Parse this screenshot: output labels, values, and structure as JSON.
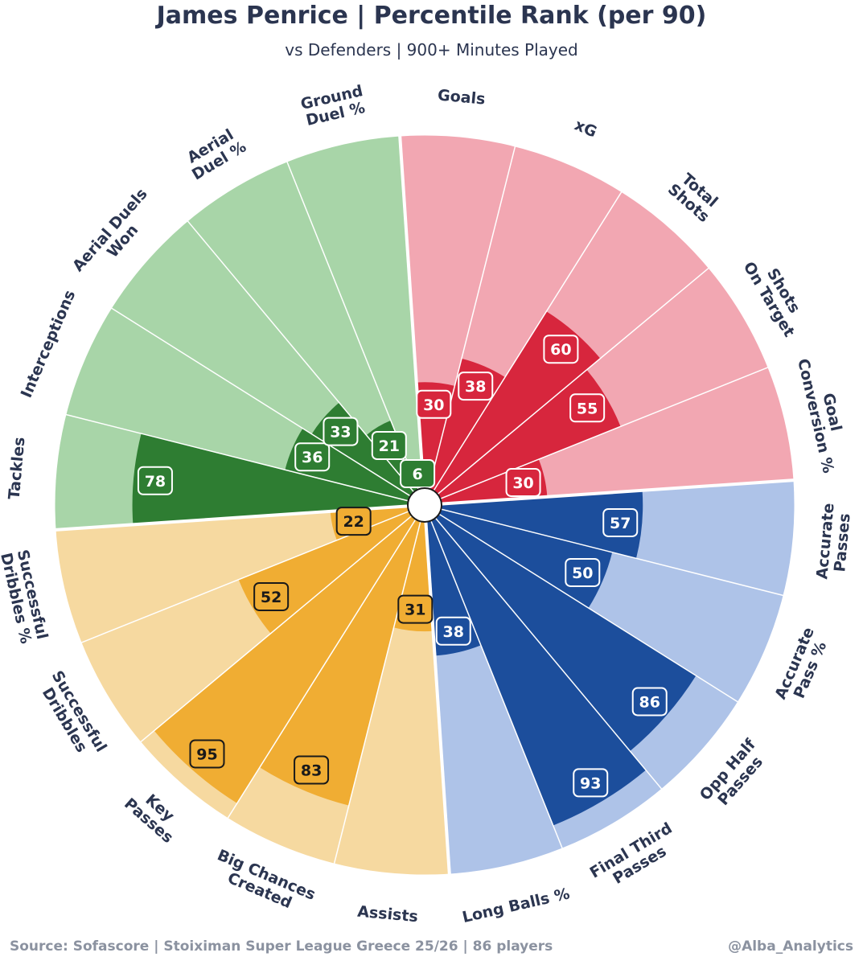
{
  "header": {
    "title": "James Penrice | Percentile Rank (per 90)",
    "subtitle": "vs Defenders | 900+ Minutes Played"
  },
  "footer": {
    "source": "Source: Sofascore | Stoiximan Super League Greece 25/26 | 86 players",
    "handle": "@Alba_Analytics"
  },
  "colors": {
    "attack": {
      "fill": "#d7263d",
      "light": "#f2a7b2",
      "text": "#ffffff",
      "stroke": "#ffffff"
    },
    "possession": {
      "fill": "#1c4e9c",
      "light": "#aec3e8",
      "text": "#ffffff",
      "stroke": "#ffffff"
    },
    "creation": {
      "fill": "#f0ad33",
      "light": "#f6d9a0",
      "text": "#1a1a1a",
      "stroke": "#1a1a1a"
    },
    "defending": {
      "fill": "#2e7d32",
      "light": "#a8d5a8",
      "text": "#ffffff",
      "stroke": "#ffffff"
    }
  },
  "chart_data": {
    "type": "pizza",
    "range": [
      0,
      100
    ],
    "slices": [
      {
        "label": "Goals",
        "value": 30,
        "group": "attack"
      },
      {
        "label": "xG",
        "value": 38,
        "group": "attack"
      },
      {
        "label": "Total\nShots",
        "value": 60,
        "group": "attack"
      },
      {
        "label": "Shots\nOn Target",
        "value": 55,
        "group": "attack"
      },
      {
        "label": "Goal\nConversion %",
        "value": 30,
        "group": "attack"
      },
      {
        "label": "Accurate\nPasses",
        "value": 57,
        "group": "possession"
      },
      {
        "label": "Accurate\nPass %",
        "value": 50,
        "group": "possession"
      },
      {
        "label": "Opp Half\nPasses",
        "value": 86,
        "group": "possession"
      },
      {
        "label": "Final Third\nPasses",
        "value": 93,
        "group": "possession"
      },
      {
        "label": "Long Balls %",
        "value": 38,
        "group": "possession"
      },
      {
        "label": "Assists",
        "value": 31,
        "group": "creation"
      },
      {
        "label": "Big Chances\nCreated",
        "value": 83,
        "group": "creation"
      },
      {
        "label": "Key\nPasses",
        "value": 95,
        "group": "creation"
      },
      {
        "label": "Successful\nDribbles",
        "value": 52,
        "group": "creation"
      },
      {
        "label": "Successful\nDribbles %",
        "value": 22,
        "group": "creation"
      },
      {
        "label": "Tackles",
        "value": 78,
        "group": "defending"
      },
      {
        "label": "Interceptions",
        "value": 36,
        "group": "defending"
      },
      {
        "label": "Aerial Duels\nWon",
        "value": 33,
        "group": "defending"
      },
      {
        "label": "Aerial\nDuel %",
        "value": 21,
        "group": "defending"
      },
      {
        "label": "Ground\nDuel %",
        "value": 6,
        "group": "defending"
      }
    ]
  }
}
